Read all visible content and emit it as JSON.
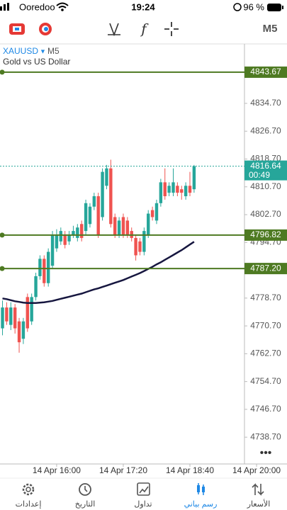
{
  "status_bar": {
    "carrier": "Ooredoo",
    "time": "19:24",
    "battery": "96 %"
  },
  "toolbar": {
    "timeframe": "M5"
  },
  "chart_data": {
    "type": "candlestick",
    "symbol": "XAUUSD",
    "timeframe": "M5",
    "description": "Gold vs US Dollar",
    "open": [
      4770,
      4776,
      4771,
      4776,
      4772,
      4767,
      4779,
      4772,
      4779,
      4785,
      4790,
      4783,
      4788,
      4793,
      4795,
      4797,
      4795,
      4797,
      4796,
      4800,
      4798,
      4800,
      4805,
      4808,
      4802,
      4811,
      4816,
      4802,
      4797,
      4802,
      4801,
      4798,
      4796,
      4795,
      4792,
      4797,
      4804,
      4801,
      4806,
      4812,
      4809,
      4809,
      4811,
      4810,
      4808,
      4811,
      4810
    ],
    "high": [
      4778,
      4777.5,
      4777.5,
      4777,
      4773,
      4773,
      4780,
      4780,
      4786,
      4791,
      4791,
      4793,
      4798,
      4798.5,
      4799,
      4798,
      4798,
      4799.5,
      4800,
      4801,
      4807,
      4806,
      4809,
      4809,
      4816,
      4817,
      4818.5,
      4803,
      4802,
      4803,
      4802,
      4799,
      4797,
      4796,
      4799,
      4804,
      4805,
      4807,
      4813,
      4816,
      4812,
      4816,
      4812,
      4811,
      4812,
      4815,
      4817
    ],
    "low": [
      4768,
      4771,
      4769.5,
      4768.5,
      4763,
      4765.5,
      4769,
      4771,
      4778,
      4784,
      4782,
      4782,
      4787,
      4792,
      4794,
      4793,
      4794,
      4796,
      4795,
      4795,
      4797,
      4799,
      4804,
      4796,
      4801,
      4810,
      4799,
      4796,
      4796,
      4796,
      4796,
      4795,
      4789.5,
      4791,
      4791,
      4796,
      4801,
      4800,
      4805,
      4807,
      4808,
      4808,
      4808,
      4807,
      4807,
      4808,
      4809
    ],
    "close": [
      4776,
      4772,
      4776,
      4770,
      4766,
      4772,
      4770,
      4779,
      4785,
      4790,
      4783,
      4792,
      4797,
      4797,
      4798,
      4794,
      4797,
      4798,
      4799,
      4796,
      4806,
      4805,
      4808,
      4797,
      4815,
      4816,
      4800,
      4797,
      4801,
      4797,
      4797,
      4796,
      4791,
      4792,
      4798,
      4803,
      4802,
      4806,
      4812,
      4808,
      4811,
      4812,
      4809,
      4809,
      4811,
      4809,
      4816.64
    ],
    "moving_average": {
      "color": "#16163f",
      "values": [
        4778.6,
        4778.4,
        4778.1,
        4777.8,
        4777.6,
        4777.4,
        4777.3,
        4777.3,
        4777.3,
        4777.4,
        4777.5,
        4777.7,
        4777.9,
        4778.2,
        4778.5,
        4778.8,
        4779.1,
        4779.4,
        4779.7,
        4780.0,
        4780.4,
        4780.8,
        4781.2,
        4781.5,
        4781.9,
        4782.3,
        4782.7,
        4783.1,
        4783.5,
        4783.9,
        4784.4,
        4784.9,
        4785.4,
        4785.9,
        4786.5,
        4787.1,
        4787.7,
        4788.4,
        4789.0,
        4789.7,
        4790.4,
        4791.1,
        4791.8,
        4792.5,
        4793.3,
        4794.1,
        4794.9
      ]
    },
    "bull_color": "#26a69a",
    "bear_color": "#ef5350",
    "hlines": [
      4843.67,
      4796.82,
      {
        "value": 4787.2,
        "label": "4787.20"
      }
    ],
    "hline_color": "#4e7a22",
    "current_price": 4816.64,
    "countdown": "00:49",
    "ylim": [
      4731.0,
      4851.8
    ],
    "yticks": [
      {
        "value": 4834.7,
        "label": "4834.70"
      },
      {
        "value": 4826.7,
        "label": "4826.70"
      },
      {
        "value": 4818.7,
        "label": "4818.70"
      },
      {
        "value": 4810.7,
        "label": "4810.70"
      },
      {
        "value": 4802.7,
        "label": "4802.70"
      },
      {
        "value": 4794.7,
        "label": "4794.70"
      },
      {
        "value": 4778.7,
        "label": "4778.70"
      },
      {
        "value": 4770.7,
        "label": "4770.70"
      },
      {
        "value": 4762.7,
        "label": "4762.70"
      },
      {
        "value": 4754.7,
        "label": "4754.70"
      },
      {
        "value": 4746.7,
        "label": "4746.70"
      },
      {
        "value": 4738.7,
        "label": "4738.70"
      }
    ],
    "xlim": [
      -0.6,
      58.1
    ],
    "xticks": [
      {
        "value": 13,
        "label": "14 Apr 16:00"
      },
      {
        "value": 29,
        "label": "14 Apr 17:20"
      },
      {
        "value": 45,
        "label": "14 Apr 18:40"
      },
      {
        "value": 61,
        "label": "14 Apr 20:00"
      }
    ]
  },
  "bottom_nav": {
    "items": [
      "إعدادات",
      "التاريخ",
      "تداول",
      "رسم بياني",
      "الأسعار"
    ],
    "active": 3
  }
}
